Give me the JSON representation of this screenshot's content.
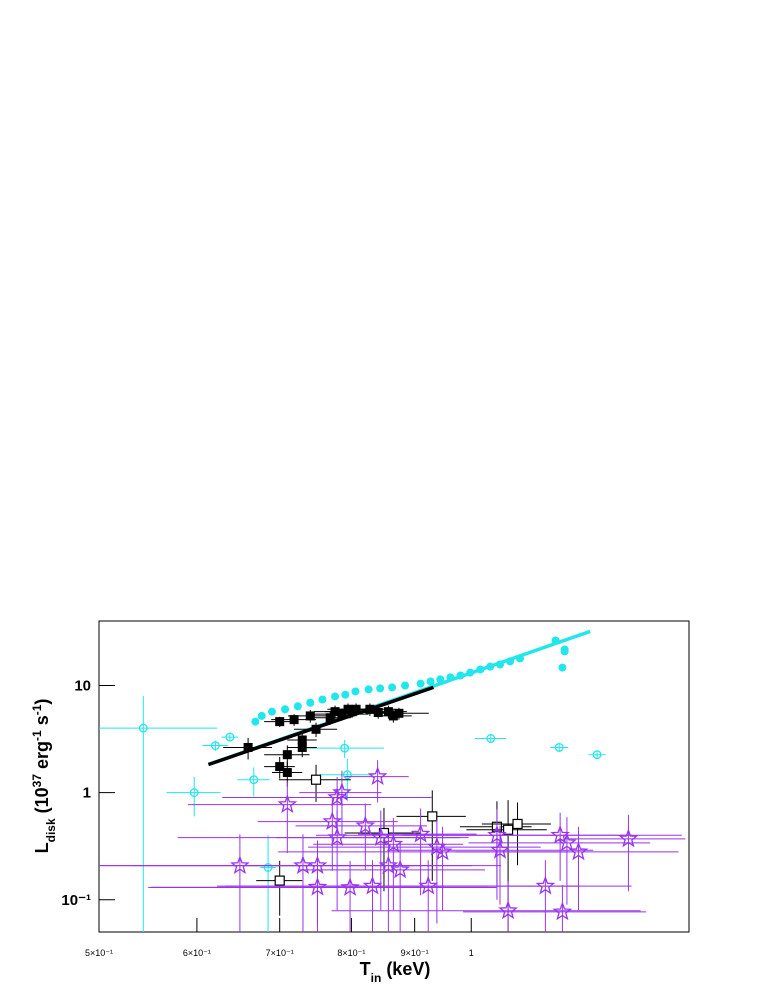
{
  "chart_data": {
    "type": "scatter",
    "xscale": "log",
    "yscale": "log",
    "xlim": [
      0.5,
      1.5
    ],
    "ylim": [
      0.05,
      40
    ],
    "xticks": [
      {
        "value": 0.5,
        "label": "5×10⁻¹"
      },
      {
        "value": 0.6,
        "label": "6×10⁻¹"
      },
      {
        "value": 0.7,
        "label": "7×10⁻¹"
      },
      {
        "value": 0.8,
        "label": "8×10⁻¹"
      },
      {
        "value": 0.9,
        "label": "9×10⁻¹"
      },
      1
    ],
    "yticks": [
      {
        "value": 0.1,
        "label": "10⁻¹"
      },
      1,
      10
    ],
    "x_label": [
      {
        "text": "T"
      },
      {
        "text": "in",
        "shift": "sub"
      },
      {
        "text": " (keV)"
      }
    ],
    "y_label": [
      {
        "text": "L"
      },
      {
        "text": "disk",
        "shift": "sub"
      },
      {
        "text": " (10"
      },
      {
        "text": "37",
        "shift": "super"
      },
      {
        "text": " erg"
      },
      {
        "text": "-1",
        "shift": "super"
      },
      {
        "text": " s"
      },
      {
        "text": "-1",
        "shift": "super"
      },
      {
        "text": ")"
      }
    ],
    "series": [
      {
        "marker": "circle",
        "filled": true,
        "color": "#22e6ee",
        "x": [
          0.669,
          0.677,
          0.69,
          0.707,
          0.724,
          0.741,
          0.758,
          0.776,
          0.791,
          0.806,
          0.826,
          0.844,
          0.863,
          0.884,
          0.91,
          0.927,
          0.944,
          0.962,
          0.98,
          0.998,
          1.017,
          1.036,
          1.055,
          1.075,
          1.095,
          1.17,
          1.19,
          1.185,
          1.19
        ],
        "values": [
          4.6,
          5.2,
          5.7,
          6.0,
          6.4,
          6.9,
          7.4,
          7.9,
          8.2,
          8.8,
          9.2,
          9.4,
          9.6,
          10,
          10.4,
          10.9,
          11.4,
          11.9,
          12.4,
          13.2,
          14.1,
          15.0,
          15.7,
          16.8,
          17.9,
          26.3,
          21.7,
          14.7,
          20.8
        ]
      },
      {
        "marker": "circle",
        "filled": false,
        "color": "#22e6ee",
        "x": [
          0.543,
          0.597,
          0.621,
          0.638,
          0.667,
          0.685,
          0.794,
          0.79,
          1.037,
          1.178,
          1.264
        ],
        "values": [
          4.0,
          1.0,
          2.75,
          3.3,
          1.32,
          0.2,
          1.47,
          2.6,
          3.2,
          2.64,
          2.26
        ],
        "x_err": [
          0.08,
          0.03,
          0.015,
          0.01,
          0.02,
          0.01,
          0.04,
          0.06,
          0.03,
          0.02,
          0.02
        ],
        "y_err": [
          4,
          0.4,
          0.3,
          0.3,
          0.4,
          0.2,
          0.6,
          0.5,
          0.3,
          0.2,
          0.2
        ]
      },
      {
        "marker": "square",
        "filled": true,
        "color": "#000000",
        "x": [
          0.66,
          0.7,
          0.719,
          0.741,
          0.7,
          0.71,
          0.71,
          0.73,
          0.73,
          0.749,
          0.769,
          0.776,
          0.786,
          0.795,
          0.801,
          0.807,
          0.828,
          0.841,
          0.857,
          0.865,
          0.874
        ],
        "values": [
          2.64,
          4.6,
          4.8,
          5.2,
          1.75,
          2.26,
          1.54,
          2.64,
          3.1,
          3.9,
          5.0,
          5.7,
          5.4,
          6.0,
          5.7,
          6.0,
          6.0,
          5.6,
          5.7,
          5.2,
          5.5
        ],
        "x_err": [
          0.03,
          0.02,
          0.03,
          0.03,
          0.02,
          0.03,
          0.02,
          0.02,
          0.02,
          0.03,
          0.03,
          0.03,
          0.04,
          0.03,
          0.04,
          0.03,
          0.04,
          0.03,
          0.03,
          0.03,
          0.05
        ],
        "y_err": [
          0.6,
          0.5,
          0.6,
          0.7,
          0.4,
          0.5,
          0.4,
          0.5,
          0.5,
          0.6,
          0.7,
          0.8,
          0.7,
          0.8,
          0.7,
          0.8,
          0.8,
          0.7,
          0.8,
          0.7,
          0.7
        ]
      },
      {
        "marker": "square",
        "filled": false,
        "color": "#000000",
        "x": [
          0.7,
          0.749,
          0.85,
          0.93,
          1.049,
          1.071,
          1.09
        ],
        "values": [
          0.151,
          1.32,
          0.42,
          0.6,
          0.48,
          0.45,
          0.51
        ],
        "x_err": [
          0.03,
          0.05,
          0.06,
          0.06,
          0.07,
          0.08,
          0.07
        ],
        "y_err": [
          0.08,
          0.5,
          0.3,
          0.45,
          0.35,
          0.4,
          0.3
        ]
      },
      {
        "marker": "star",
        "filled": false,
        "color": "#9933ee",
        "x": [
          0.65,
          0.71,
          0.731,
          0.751,
          0.751,
          0.772,
          0.779,
          0.786,
          0.779,
          0.798,
          0.821,
          0.832,
          0.84,
          0.845,
          0.857,
          0.865,
          0.876,
          0.91,
          0.923,
          0.938,
          0.948,
          1.049,
          1.055,
          1.071,
          1.148,
          1.18,
          1.185,
          1.195,
          1.221,
          1.34
        ],
        "values": [
          0.208,
          0.773,
          0.208,
          0.208,
          0.131,
          0.536,
          0.9,
          1.0,
          0.38,
          0.13,
          0.49,
          0.134,
          1.41,
          0.38,
          0.208,
          0.33,
          0.19,
          0.41,
          0.134,
          0.31,
          0.28,
          0.4,
          0.29,
          0.079,
          0.134,
          0.4,
          0.077,
          0.34,
          0.28,
          0.37
        ],
        "x_err": [
          0.15,
          0.12,
          0.2,
          0.25,
          0.2,
          0.1,
          0.15,
          0.06,
          0.2,
          0.25,
          0.1,
          0.2,
          0.05,
          0.15,
          0.2,
          0.12,
          0.15,
          0.1,
          0.3,
          0.2,
          0.25,
          0.3,
          0.2,
          0.3,
          0.2,
          0.3,
          0.2,
          0.2,
          0.25,
          0.15
        ],
        "y_err": [
          0.2,
          0.5,
          0.2,
          0.15,
          0.1,
          0.35,
          0.5,
          0.6,
          0.3,
          0.1,
          0.3,
          0.1,
          0.6,
          0.3,
          0.2,
          0.25,
          0.15,
          0.3,
          0.1,
          0.25,
          0.2,
          0.3,
          0.2,
          0.07,
          0.1,
          0.25,
          0.06,
          0.25,
          0.2,
          0.25
        ]
      }
    ],
    "lines": [
      {
        "color": "#22e6ee",
        "x": [
          0.613,
          1.248
        ],
        "values": [
          1.83,
          32
        ]
      },
      {
        "color": "#000000",
        "x": [
          0.613,
          0.932
        ],
        "values": [
          1.83,
          9.6
        ]
      }
    ]
  }
}
